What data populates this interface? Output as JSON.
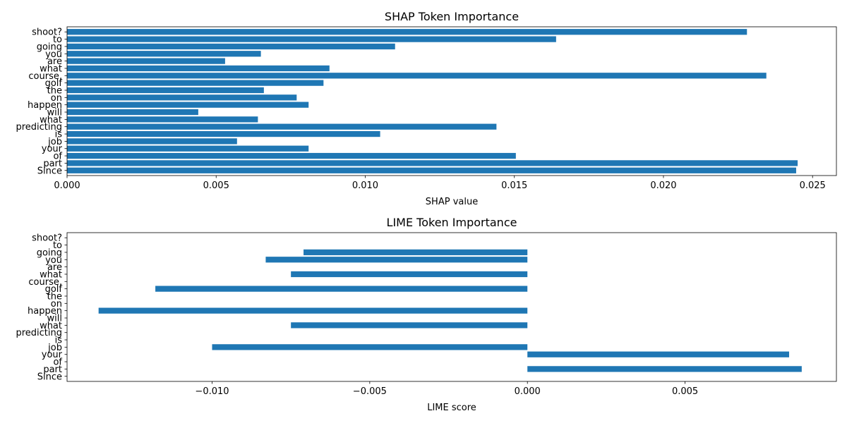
{
  "chart_data": [
    {
      "type": "bar",
      "orientation": "horizontal",
      "title": "SHAP Token Importance",
      "xlabel": "SHAP value",
      "ylabel": "",
      "xlim": [
        0,
        0.0258
      ],
      "xticks": [
        0.0,
        0.005,
        0.01,
        0.015,
        0.02,
        0.025
      ],
      "xtick_labels": [
        "0.000",
        "0.005",
        "0.010",
        "0.015",
        "0.020",
        "0.025"
      ],
      "categories": [
        "Since",
        "part",
        "of",
        "your",
        "job",
        "is",
        "predicting",
        "what",
        "will",
        "happen",
        "on",
        "the",
        "golf",
        "course,",
        "what",
        "are",
        "you",
        "going",
        "to",
        "shoot?"
      ],
      "values": [
        0.02445,
        0.0245,
        0.01505,
        0.0081,
        0.0057,
        0.0105,
        0.0144,
        0.0064,
        0.0044,
        0.0081,
        0.0077,
        0.0066,
        0.0086,
        0.02345,
        0.0088,
        0.0053,
        0.0065,
        0.011,
        0.0164,
        0.0228
      ],
      "color": "#1f77b4",
      "grid": false
    },
    {
      "type": "bar",
      "orientation": "horizontal",
      "title": "LIME Token Importance",
      "xlabel": "LIME score",
      "ylabel": "",
      "xlim": [
        -0.0146,
        0.0098
      ],
      "xticks": [
        -0.01,
        -0.005,
        0.0,
        0.005
      ],
      "xtick_labels": [
        "−0.010",
        "−0.005",
        "0.000",
        "0.005"
      ],
      "categories": [
        "Since",
        "part",
        "of",
        "your",
        "job",
        "is",
        "predicting",
        "what",
        "will",
        "happen",
        "on",
        "the",
        "golf",
        "course,",
        "what",
        "are",
        "you",
        "going",
        "to",
        "shoot?"
      ],
      "values": [
        0,
        0.0087,
        0,
        0.0083,
        -0.01,
        0,
        0,
        -0.0075,
        0,
        -0.0136,
        0,
        0,
        -0.0118,
        0,
        -0.0075,
        0,
        -0.0083,
        -0.0071,
        0,
        0
      ],
      "color": "#1f77b4",
      "grid": false
    }
  ]
}
